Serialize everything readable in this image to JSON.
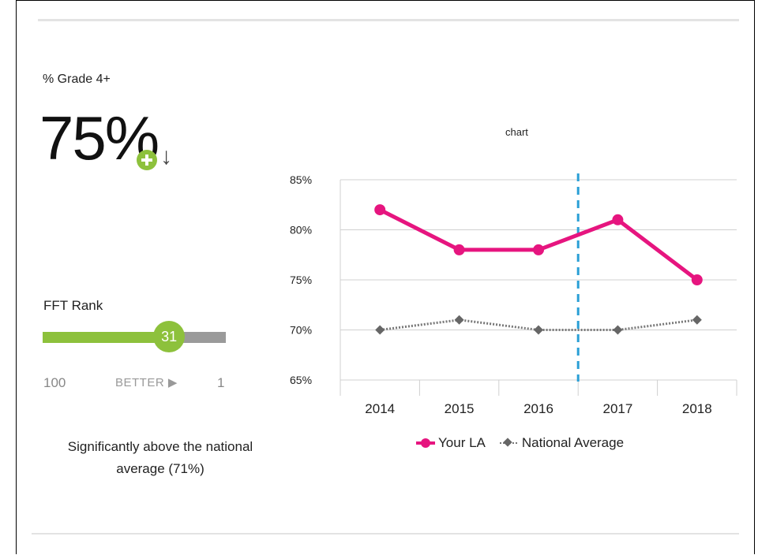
{
  "metric": {
    "label": "% Grade 4+",
    "value": "75%",
    "icons": {
      "significance": "plus-circle-icon",
      "trend": "down-arrow-icon"
    },
    "trend_symbol": "↓"
  },
  "rank": {
    "label": "FFT Rank",
    "value": "31",
    "min_label": "100",
    "better_label": "BETTER ▶",
    "max_label": "1",
    "fill_fraction": 0.69,
    "colors": {
      "fill": "#8dc13c",
      "rest": "#9a9a9a"
    }
  },
  "summary": {
    "line1": "Significantly above the national",
    "line2": "average (71%)"
  },
  "chart_data": {
    "type": "line",
    "title": "chart",
    "categories": [
      "2014",
      "2015",
      "2016",
      "2017",
      "2018"
    ],
    "y_ticks": [
      "85%",
      "80%",
      "75%",
      "70%",
      "65%"
    ],
    "ylim": [
      65,
      85
    ],
    "grid": true,
    "series": [
      {
        "name": "Your LA",
        "values": [
          82,
          78,
          78,
          81,
          75
        ],
        "color": "#e6157f"
      },
      {
        "name": "National Average",
        "values": [
          70,
          71,
          70,
          70,
          71
        ],
        "color": "#777777"
      }
    ],
    "marker_between": [
      "2016",
      "2017"
    ],
    "marker_color": "#2a9fd6",
    "legend_position": "bottom"
  }
}
